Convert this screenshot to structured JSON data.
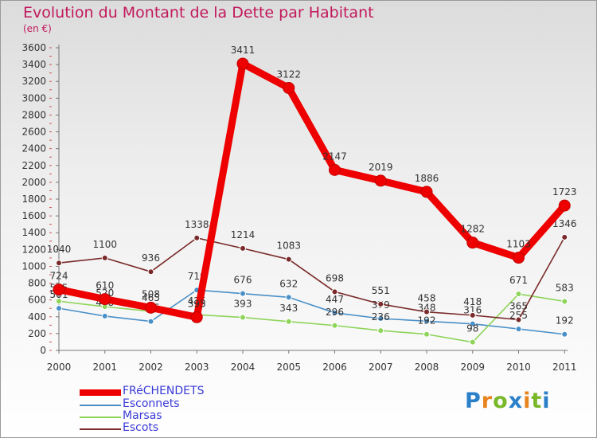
{
  "title": "Evolution du Montant de la Dette par Habitant",
  "subtitle": "(en €)",
  "logo_text": "Proxiti",
  "chart_data": {
    "type": "line",
    "x": [
      "2000",
      "2001",
      "2002",
      "2003",
      "2004",
      "2005",
      "2006",
      "2007",
      "2008",
      "2009",
      "2010",
      "2011"
    ],
    "ylim": [
      0,
      3600
    ],
    "yticks": [
      0,
      200,
      400,
      600,
      800,
      1000,
      1200,
      1400,
      1600,
      1800,
      2000,
      2200,
      2400,
      2600,
      2800,
      3000,
      3200,
      3400,
      3600
    ],
    "grid": false,
    "legend_position": "bottom-left",
    "series": [
      {
        "name": "FRéCHENDETS",
        "color": "#ee0000",
        "emphasis": true,
        "values": [
          724,
          610,
          508,
          395,
          3411,
          3122,
          2147,
          2019,
          1886,
          1282,
          1103,
          1723
        ],
        "labels": [
          "724",
          "610",
          "508",
          "395",
          "3411",
          "3122",
          "2147",
          "2019",
          "1886",
          "1282",
          "1103",
          "1723"
        ]
      },
      {
        "name": "Esconnets",
        "color": "#4a90c8",
        "values": [
          501,
          408,
          345,
          719,
          676,
          632,
          447,
          379,
          348,
          316,
          255,
          192
        ],
        "labels": [
          "501",
          "408",
          "345",
          "719",
          "676",
          "632",
          "447",
          "379",
          "348",
          "316",
          "255",
          "192"
        ]
      },
      {
        "name": "Marsas",
        "color": "#8ed45a",
        "values": [
          585,
          520,
          465,
          425,
          393,
          343,
          296,
          236,
          192,
          98,
          671,
          583
        ],
        "labels": [
          "585",
          "520",
          "465",
          "425",
          "393",
          "343",
          "296",
          "236",
          "192",
          "98",
          "671",
          "583"
        ]
      },
      {
        "name": "Escots",
        "color": "#7a2a2a",
        "values": [
          1040,
          1100,
          936,
          1338,
          1214,
          1083,
          698,
          551,
          458,
          418,
          365,
          1346
        ],
        "labels": [
          "1040",
          "1100",
          "936",
          "1338",
          "1214",
          "1083",
          "698",
          "551",
          "458",
          "418",
          "365",
          "1346"
        ]
      }
    ]
  }
}
